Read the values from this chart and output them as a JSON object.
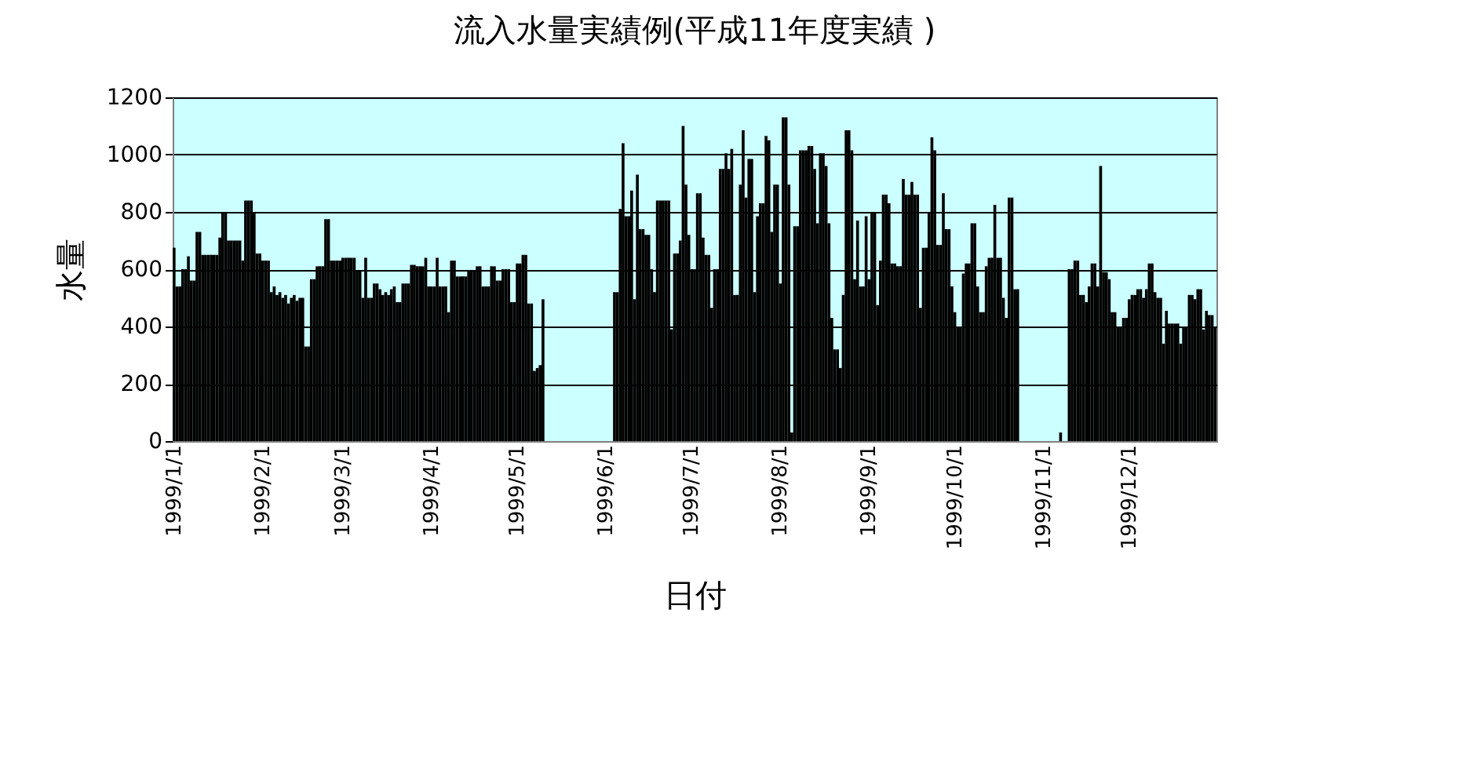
{
  "chart_data": {
    "type": "bar",
    "title": "流入水量実績例(平成11年度実績 )",
    "xlabel": "日付",
    "ylabel": "水量",
    "categories": [
      "1999/1/1",
      null,
      null,
      null,
      null,
      null,
      null,
      null,
      null,
      null,
      null,
      null,
      null,
      null,
      null,
      null,
      null,
      null,
      null,
      null,
      null,
      null,
      null,
      null,
      null,
      null,
      null,
      null,
      null,
      null,
      null,
      "1999/2/1",
      null,
      null,
      null,
      null,
      null,
      null,
      null,
      null,
      null,
      null,
      null,
      null,
      null,
      null,
      null,
      null,
      null,
      null,
      null,
      null,
      null,
      null,
      null,
      null,
      null,
      null,
      null,
      "1999/3/1",
      null,
      null,
      null,
      null,
      null,
      null,
      null,
      null,
      null,
      null,
      null,
      null,
      null,
      null,
      null,
      null,
      null,
      null,
      null,
      null,
      null,
      null,
      null,
      null,
      null,
      null,
      null,
      null,
      null,
      null,
      "1999/4/1",
      null,
      null,
      null,
      null,
      null,
      null,
      null,
      null,
      null,
      null,
      null,
      null,
      null,
      null,
      null,
      null,
      null,
      null,
      null,
      null,
      null,
      null,
      null,
      null,
      null,
      null,
      null,
      null,
      null,
      "1999/5/1",
      null,
      null,
      null,
      null,
      null,
      null,
      null,
      null,
      null,
      null,
      null,
      null,
      null,
      null,
      null,
      null,
      null,
      null,
      null,
      null,
      null,
      null,
      null,
      null,
      null,
      null,
      null,
      null,
      null,
      null,
      "1999/6/1",
      null,
      null,
      null,
      null,
      null,
      null,
      null,
      null,
      null,
      null,
      null,
      null,
      null,
      null,
      null,
      null,
      null,
      null,
      null,
      null,
      null,
      null,
      null,
      null,
      null,
      null,
      null,
      null,
      null,
      "1999/7/1",
      null,
      null,
      null,
      null,
      null,
      null,
      null,
      null,
      null,
      null,
      null,
      null,
      null,
      null,
      null,
      null,
      null,
      null,
      null,
      null,
      null,
      null,
      null,
      null,
      null,
      null,
      null,
      null,
      null,
      null,
      "1999/8/1",
      null,
      null,
      null,
      null,
      null,
      null,
      null,
      null,
      null,
      null,
      null,
      null,
      null,
      null,
      null,
      null,
      null,
      null,
      null,
      null,
      null,
      null,
      null,
      null,
      null,
      null,
      null,
      null,
      null,
      null,
      "1999/9/1",
      null,
      null,
      null,
      null,
      null,
      null,
      null,
      null,
      null,
      null,
      null,
      null,
      null,
      null,
      null,
      null,
      null,
      null,
      null,
      null,
      null,
      null,
      null,
      null,
      null,
      null,
      null,
      null,
      null,
      "1999/10/1",
      null,
      null,
      null,
      null,
      null,
      null,
      null,
      null,
      null,
      null,
      null,
      null,
      null,
      null,
      null,
      null,
      null,
      null,
      null,
      null,
      null,
      null,
      null,
      null,
      null,
      null,
      null,
      null,
      null,
      null,
      "1999/11/1",
      null,
      null,
      null,
      null,
      null,
      null,
      null,
      null,
      null,
      null,
      null,
      null,
      null,
      null,
      null,
      null,
      null,
      null,
      null,
      null,
      null,
      null,
      null,
      null,
      null,
      null,
      null,
      null,
      null,
      "1999/12/1",
      null,
      null,
      null,
      null,
      null,
      null,
      null,
      null,
      null,
      null,
      null,
      null,
      null,
      null,
      null,
      null,
      null,
      null,
      null,
      null,
      null,
      null,
      null,
      null,
      null,
      null,
      null,
      null,
      null,
      null
    ],
    "values": [
      675,
      540,
      540,
      600,
      600,
      645,
      560,
      560,
      730,
      730,
      650,
      650,
      650,
      650,
      650,
      650,
      710,
      795,
      795,
      700,
      700,
      700,
      700,
      700,
      630,
      840,
      840,
      840,
      800,
      655,
      655,
      630,
      630,
      630,
      520,
      540,
      510,
      520,
      500,
      510,
      480,
      500,
      510,
      490,
      500,
      500,
      330,
      330,
      565,
      565,
      610,
      610,
      610,
      775,
      775,
      630,
      630,
      630,
      630,
      640,
      640,
      640,
      640,
      640,
      595,
      595,
      500,
      640,
      500,
      500,
      550,
      550,
      530,
      510,
      520,
      510,
      530,
      540,
      485,
      485,
      550,
      550,
      550,
      615,
      615,
      610,
      610,
      610,
      640,
      540,
      540,
      540,
      640,
      540,
      540,
      540,
      450,
      630,
      630,
      575,
      575,
      575,
      575,
      595,
      595,
      595,
      610,
      610,
      540,
      540,
      540,
      610,
      610,
      560,
      560,
      600,
      600,
      600,
      485,
      485,
      620,
      620,
      650,
      650,
      480,
      480,
      245,
      255,
      265,
      495,
      null,
      null,
      null,
      null,
      null,
      null,
      null,
      null,
      null,
      null,
      null,
      null,
      null,
      null,
      null,
      null,
      null,
      null,
      null,
      null,
      null,
      null,
      null,
      null,
      520,
      520,
      810,
      1040,
      785,
      785,
      875,
      495,
      930,
      740,
      740,
      720,
      720,
      600,
      520,
      840,
      840,
      840,
      840,
      840,
      390,
      655,
      655,
      700,
      1100,
      895,
      720,
      600,
      600,
      865,
      865,
      710,
      650,
      650,
      465,
      600,
      600,
      950,
      950,
      1005,
      950,
      1020,
      510,
      510,
      895,
      1085,
      850,
      985,
      985,
      520,
      785,
      830,
      830,
      1065,
      1050,
      730,
      895,
      895,
      550,
      1130,
      1130,
      895,
      30,
      750,
      750,
      1015,
      1015,
      1015,
      1030,
      1030,
      950,
      760,
      1005,
      1005,
      960,
      760,
      430,
      320,
      320,
      255,
      510,
      1085,
      1085,
      1015,
      565,
      770,
      540,
      540,
      785,
      565,
      795,
      795,
      475,
      630,
      860,
      860,
      830,
      620,
      620,
      610,
      610,
      915,
      860,
      860,
      905,
      860,
      860,
      465,
      675,
      675,
      800,
      1060,
      1015,
      685,
      685,
      865,
      740,
      740,
      540,
      450,
      400,
      400,
      585,
      620,
      620,
      760,
      760,
      540,
      450,
      450,
      610,
      640,
      640,
      825,
      640,
      640,
      500,
      430,
      850,
      850,
      530,
      530,
      null,
      null,
      null,
      null,
      null,
      null,
      null,
      null,
      null,
      null,
      null,
      null,
      null,
      null,
      30,
      null,
      null,
      600,
      600,
      630,
      630,
      510,
      510,
      485,
      540,
      620,
      620,
      540,
      960,
      590,
      590,
      565,
      450,
      450,
      400,
      400,
      430,
      430,
      495,
      510,
      510,
      530,
      530,
      500,
      530,
      620,
      620,
      520,
      500,
      500,
      340,
      455,
      410,
      410,
      410,
      410,
      340,
      400,
      400,
      510,
      510,
      495,
      530,
      530,
      390,
      455,
      440,
      440,
      400
    ],
    "color": "#000000",
    "ylim": [
      0,
      1200
    ],
    "yticks": [
      0,
      200,
      400,
      600,
      800,
      1000,
      1200
    ],
    "grid": "y"
  }
}
